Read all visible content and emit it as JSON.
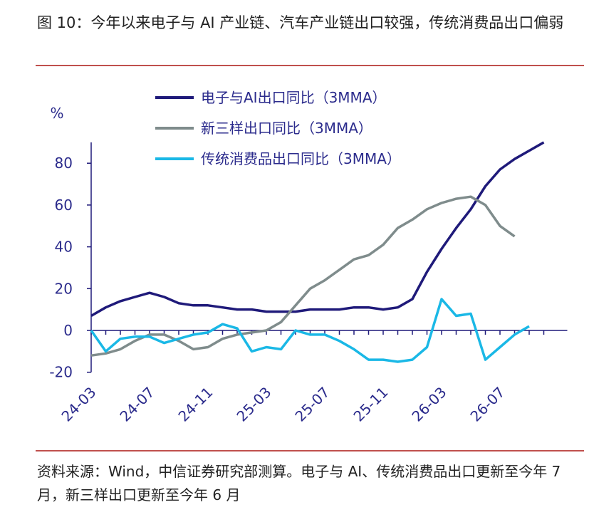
{
  "chart_data": {
    "type": "line",
    "title": "图 10：今年以来电子与 AI 产业链、汽车产业链出口较强，传统消费品出口偏弱",
    "note": "资料来源：Wind，中信证券研究部测算。电子与 AI、传统消费品出口更新至今年 7 月，新三样出口更新至今年 6 月",
    "y_label": "%",
    "categories": [
      "24-03",
      null,
      null,
      null,
      "24-07",
      null,
      null,
      null,
      "24-11",
      null,
      null,
      null,
      "25-03",
      null,
      null,
      null,
      "25-07",
      null,
      null,
      null,
      "25-11",
      null,
      null,
      null,
      "26-03",
      null,
      null,
      null,
      "26-07",
      null,
      null,
      null
    ],
    "series": [
      {
        "name": "电子与AI出口同比（3MMA）",
        "color": "#1f1a7a",
        "values": [
          7,
          11,
          14,
          16,
          18,
          16,
          13,
          12,
          12,
          11,
          10,
          10,
          9,
          9,
          9,
          10,
          10,
          10,
          11,
          11,
          10,
          11,
          15,
          28,
          39,
          49,
          58,
          69,
          77,
          82,
          86,
          90
        ]
      },
      {
        "name": "新三样出口同比（3MMA）",
        "color": "#7f8c8c",
        "values": [
          -12,
          -11,
          -9,
          -5,
          -2,
          -2,
          -5,
          -9,
          -8,
          -4,
          -2,
          -1,
          0,
          4,
          12,
          20,
          24,
          29,
          34,
          36,
          41,
          49,
          53,
          58,
          61,
          63,
          64,
          60,
          50,
          45,
          null,
          null
        ]
      },
      {
        "name": "传统消费品出口同比（3MMA）",
        "color": "#1ab8e6",
        "values": [
          0,
          -10,
          -4,
          -3,
          -3,
          -6,
          -4,
          -2,
          -1,
          3,
          1,
          -10,
          -8,
          -9,
          0,
          -2,
          -2,
          -5,
          -9,
          -14,
          -14,
          -15,
          -14,
          -8,
          15,
          7,
          8,
          -14,
          -8,
          -2,
          2,
          null
        ]
      }
    ],
    "ylim": [
      -20,
      90
    ],
    "yticks": [
      -20,
      0,
      20,
      40,
      60,
      80
    ],
    "grid": false
  }
}
